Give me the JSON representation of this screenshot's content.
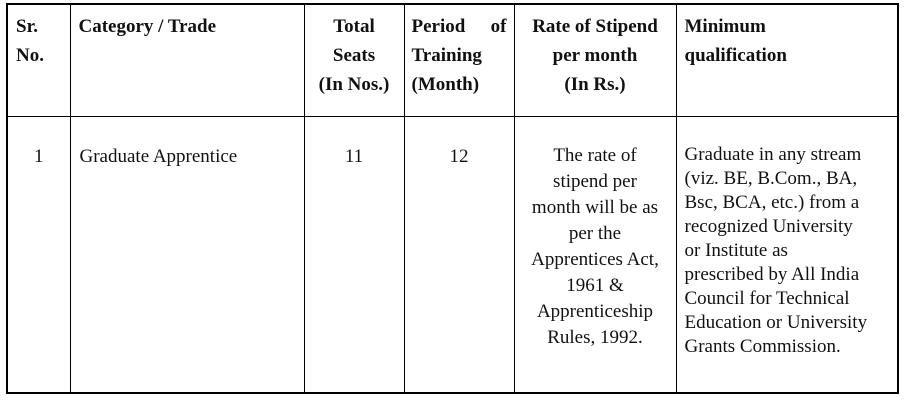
{
  "table": {
    "headers": [
      {
        "label": "Sr.\nNo."
      },
      {
        "label": "Category / Trade"
      },
      {
        "label": "Total\nSeats\n(In Nos.)"
      },
      {
        "label": "Period of\nTraining\n(Month)"
      },
      {
        "label": "Rate of Stipend\nper month\n(In Rs.)"
      },
      {
        "label": "Minimum\nqualification"
      }
    ],
    "rows": [
      {
        "cells": [
          "1",
          "Graduate Apprentice",
          "11",
          "12",
          "The rate of\nstipend per\nmonth will be as\nper the\nApprentices Act,\n1961 &\nApprenticeship\nRules, 1992.",
          "Graduate in any stream\n(viz. BE, B.Com., BA,\nBsc, BCA, etc.) from a\nrecognized University\nor Institute as\nprescribed by All India\nCouncil for Technical\nEducation or University\nGrants Commission."
        ]
      }
    ]
  },
  "colors": {
    "border": "#000000",
    "text": "#111111",
    "background": "#ffffff"
  }
}
